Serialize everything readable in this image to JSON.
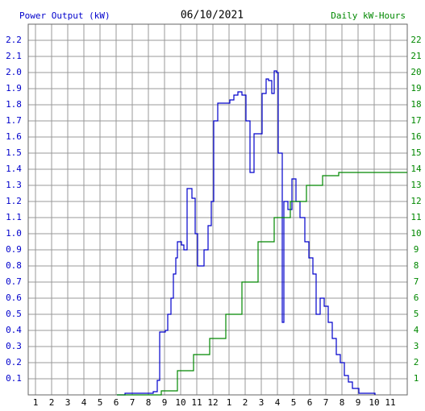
{
  "chart_data": {
    "type": "line",
    "title": "06/10/2021",
    "ylabel": "Power Output (kW)",
    "y2label": "Daily kW-Hours",
    "xlim": [
      0.55,
      24.05
    ],
    "xticks": [
      1,
      2,
      3,
      4,
      5,
      6,
      7,
      8,
      9,
      10,
      11,
      12,
      {
        "value": 13,
        "label": "1"
      },
      {
        "value": 14,
        "label": "2"
      },
      {
        "value": 15,
        "label": "3"
      },
      {
        "value": 16,
        "label": "4"
      },
      {
        "value": 17,
        "label": "5"
      },
      {
        "value": 18,
        "label": "6"
      },
      {
        "value": 19,
        "label": "7"
      },
      {
        "value": 20,
        "label": "8"
      },
      {
        "value": 21,
        "label": "9"
      },
      {
        "value": 22,
        "label": "10"
      },
      {
        "value": 23,
        "label": "11"
      }
    ],
    "ylim": [
      0,
      2.3
    ],
    "yticks": [
      0.1,
      0.2,
      0.3,
      0.4,
      0.5,
      0.6,
      0.7,
      0.8,
      0.9,
      {
        "value": 1,
        "label": "1.0"
      },
      1.1,
      1.2,
      1.3,
      1.4,
      1.5,
      1.6,
      1.7,
      1.8,
      1.9,
      {
        "value": 2,
        "label": "2.0"
      },
      2.1,
      2.2
    ],
    "y2lim": [
      0,
      23
    ],
    "y2ticks": [
      1,
      2,
      3,
      4,
      5,
      6,
      7,
      8,
      9,
      10,
      11,
      12,
      13,
      14,
      15,
      16,
      17,
      18,
      19,
      20,
      21,
      22
    ],
    "grid": true,
    "series": [
      {
        "color": "#0000cc",
        "x": [
          6.05,
          6.55,
          8.3,
          8.55,
          8.7,
          9.05,
          9.2,
          9.4,
          9.55,
          9.7,
          9.8,
          10.05,
          10.2,
          10.4,
          10.7,
          10.9,
          11.05,
          11.3,
          11.45,
          11.7,
          11.9,
          12.05,
          12.3,
          12.8,
          13.05,
          13.3,
          13.55,
          13.8,
          14.05,
          14.3,
          14.55,
          14.8,
          15.05,
          15.3,
          15.45,
          15.65,
          15.8,
          15.95,
          16.05,
          16.3,
          16.4,
          16.65,
          16.9,
          17.15,
          17.4,
          17.7,
          17.95,
          18.2,
          18.4,
          18.65,
          18.9,
          19.15,
          19.4,
          19.65,
          19.9,
          20.15,
          20.4,
          20.65,
          21.05,
          22.05
        ],
        "values": [
          0,
          0.01,
          0.02,
          0.09,
          0.39,
          0.4,
          0.5,
          0.6,
          0.75,
          0.85,
          0.95,
          0.93,
          0.9,
          1.28,
          1.22,
          1.0,
          0.8,
          0.8,
          0.9,
          1.05,
          1.2,
          1.7,
          1.81,
          1.81,
          1.83,
          1.86,
          1.88,
          1.86,
          1.7,
          1.38,
          1.62,
          1.62,
          1.87,
          1.96,
          1.95,
          1.87,
          2.01,
          2.0,
          1.5,
          0.45,
          1.2,
          1.15,
          1.34,
          1.2,
          1.1,
          0.95,
          0.85,
          0.75,
          0.5,
          0.6,
          0.55,
          0.45,
          0.35,
          0.25,
          0.2,
          0.12,
          0.08,
          0.04,
          0.01,
          0
        ]
      },
      {
        "color": "#008800",
        "axis": "y2",
        "x": [
          6.05,
          8.8,
          9.8,
          10.8,
          11.8,
          12.8,
          13.8,
          14.8,
          15.8,
          16.8,
          17.8,
          18.8,
          19.8,
          20.8,
          24.05
        ],
        "values": [
          0,
          0.25,
          1.5,
          2.5,
          3.5,
          5.0,
          7.0,
          9.5,
          11.0,
          12.0,
          13.0,
          13.6,
          13.8,
          13.8,
          13.8
        ]
      }
    ]
  }
}
